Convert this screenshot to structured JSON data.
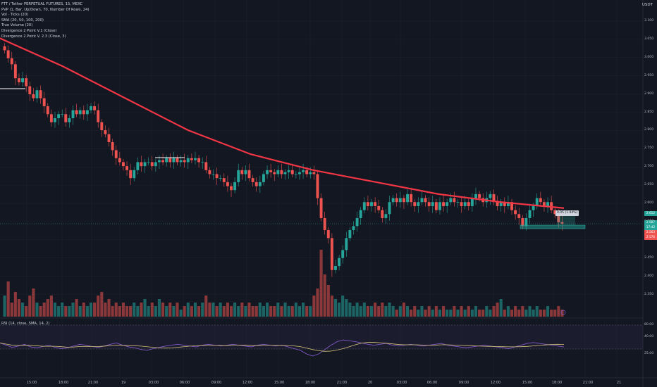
{
  "legend": {
    "symbol": "FTT / Tether PERPETUAL FUTURES, 15, MEXC",
    "indicators": [
      "PVP (1, Bar, Up/Down, 70, Number Of Rows, 24)",
      "Vol · Ticks (20)",
      "SMA (20, 50, 100, 200)",
      "True Volume (20)",
      "Divergence 2 Point V.1 (Close)",
      "Divergence 2 Point V. 2.3 (Close, 3)"
    ]
  },
  "currency": "USDT",
  "rsi_legend": "RSI (14, close, SMA, 14, 2)",
  "price_axis": [
    "3.100",
    "3.050",
    "3.000",
    "2.950",
    "2.900",
    "2.850",
    "2.800",
    "2.750",
    "2.700",
    "2.650",
    "2.600",
    "2.550",
    "2.500",
    "2.450",
    "2.400",
    "2.350"
  ],
  "rsi_axis": [
    "80.00",
    "40.00",
    "25.00"
  ],
  "time_axis": [
    "15:00",
    "18:00",
    "21:00",
    "19",
    "03:00",
    "06:00",
    "09:00",
    "12:00",
    "15:00",
    "18:00",
    "21:00",
    "20",
    "03:00",
    "06:00",
    "09:00",
    "12:00",
    "15:00",
    "18:00",
    "21:00",
    "21"
  ],
  "price_labels": [
    {
      "text": "2.612",
      "color": "#26a69a"
    },
    {
      "text": "2.587",
      "color": "#26a69a"
    },
    {
      "text": "17:42",
      "color": "#26a69a"
    },
    {
      "text": "2.563",
      "color": "#ef5350"
    },
    {
      "text": "2.576",
      "color": "#ef5350"
    }
  ],
  "tooltip_text": "0.05 (1.94%)",
  "colors": {
    "background": "#131722",
    "up": "#26a69a",
    "down": "#ef5350",
    "sma200": "#f23645",
    "rsi": "#7e57c2",
    "rsi_ma": "#d4c17a",
    "grid": "#1e222d"
  },
  "chart_data": {
    "type": "candlestick",
    "title": "FTT / Tether PERPETUAL FUTURES, 15, MEXC",
    "ylim": [
      2.35,
      3.1
    ],
    "close_series": [
      3.02,
      3.0,
      2.985,
      2.95,
      2.94,
      2.95,
      2.93,
      2.91,
      2.9,
      2.92,
      2.9,
      2.88,
      2.86,
      2.84,
      2.85,
      2.86,
      2.86,
      2.84,
      2.85,
      2.87,
      2.86,
      2.87,
      2.86,
      2.87,
      2.88,
      2.87,
      2.84,
      2.82,
      2.81,
      2.79,
      2.77,
      2.75,
      2.74,
      2.73,
      2.72,
      2.7,
      2.72,
      2.74,
      2.73,
      2.74,
      2.74,
      2.73,
      2.74,
      2.745,
      2.74,
      2.75,
      2.74,
      2.75,
      2.74,
      2.745,
      2.74,
      2.75,
      2.745,
      2.75,
      2.74,
      2.74,
      2.72,
      2.71,
      2.71,
      2.7,
      2.7,
      2.69,
      2.68,
      2.67,
      2.69,
      2.72,
      2.71,
      2.72,
      2.7,
      2.69,
      2.68,
      2.69,
      2.71,
      2.72,
      2.715,
      2.71,
      2.72,
      2.71,
      2.715,
      2.72,
      2.71,
      2.71,
      2.715,
      2.72,
      2.71,
      2.715,
      2.71,
      2.65,
      2.6,
      2.57,
      2.55,
      2.47,
      2.48,
      2.5,
      2.52,
      2.55,
      2.57,
      2.58,
      2.6,
      2.62,
      2.64,
      2.63,
      2.64,
      2.63,
      2.62,
      2.6,
      2.61,
      2.64,
      2.65,
      2.64,
      2.65,
      2.64,
      2.66,
      2.64,
      2.63,
      2.64,
      2.65,
      2.64,
      2.63,
      2.64,
      2.62,
      2.64,
      2.63,
      2.64,
      2.65,
      2.64,
      2.64,
      2.63,
      2.64,
      2.63,
      2.65,
      2.66,
      2.65,
      2.64,
      2.65,
      2.66,
      2.64,
      2.63,
      2.64,
      2.63,
      2.64,
      2.62,
      2.61,
      2.6,
      2.58,
      2.6,
      2.62,
      2.63,
      2.65,
      2.64,
      2.63,
      2.64,
      2.62,
      2.61,
      2.59,
      2.586
    ],
    "sma200": [
      3.05,
      2.98,
      2.9,
      2.82,
      2.76,
      2.72,
      2.69,
      2.66,
      2.64,
      2.625
    ],
    "volume_relative": [
      0.3,
      0.5,
      0.2,
      0.35,
      0.25,
      0.2,
      0.15,
      0.3,
      0.4,
      0.2,
      0.15,
      0.2,
      0.25,
      0.3,
      0.2,
      0.15,
      0.2,
      0.15,
      0.15,
      0.2,
      0.25,
      0.15,
      0.2,
      0.15,
      0.2,
      0.2,
      0.3,
      0.35,
      0.2,
      0.25,
      0.15,
      0.2,
      0.15,
      0.2,
      0.15,
      0.15,
      0.2,
      0.15,
      0.2,
      0.25,
      0.15,
      0.2,
      0.15,
      0.25,
      0.2,
      0.15,
      0.2,
      0.15,
      0.2,
      0.1,
      0.15,
      0.2,
      0.15,
      0.2,
      0.15,
      0.2,
      0.3,
      0.2,
      0.2,
      0.15,
      0.2,
      0.15,
      0.2,
      0.15,
      0.2,
      0.15,
      0.2,
      0.15,
      0.2,
      0.15,
      0.15,
      0.2,
      0.15,
      0.2,
      0.15,
      0.15,
      0.2,
      0.15,
      0.2,
      0.15,
      0.15,
      0.2,
      0.15,
      0.2,
      0.15,
      0.15,
      0.3,
      0.4,
      0.95,
      0.6,
      0.45,
      0.3,
      0.25,
      0.2,
      0.3,
      0.25,
      0.2,
      0.15,
      0.2,
      0.15,
      0.2,
      0.15,
      0.15,
      0.2,
      0.15,
      0.2,
      0.15,
      0.2,
      0.15,
      0.1,
      0.15,
      0.2,
      0.15,
      0.1,
      0.15,
      0.1,
      0.15,
      0.1,
      0.15,
      0.1,
      0.15,
      0.1,
      0.15,
      0.1,
      0.1,
      0.15,
      0.1,
      0.15,
      0.1,
      0.15,
      0.1,
      0.15,
      0.1,
      0.1,
      0.15,
      0.1,
      0.15,
      0.2,
      0.25,
      0.1,
      0.15,
      0.1,
      0.15,
      0.1,
      0.15,
      0.1,
      0.15,
      0.1,
      0.15,
      0.1,
      0.1,
      0.15,
      0.1,
      0.1,
      0.15,
      0.1
    ],
    "rsi": [
      55,
      50,
      45,
      48,
      52,
      46,
      44,
      47,
      50,
      45,
      42,
      44,
      48,
      52,
      50,
      47,
      45,
      48,
      52,
      55,
      50,
      46,
      44,
      40,
      38,
      42,
      45,
      48,
      50,
      52,
      50,
      48,
      46,
      50,
      52,
      50,
      48,
      50,
      52,
      50,
      48,
      46,
      50,
      52,
      50,
      48,
      50,
      46,
      42,
      38,
      30,
      25,
      30,
      40,
      50,
      58,
      62,
      60,
      58,
      55,
      52,
      50,
      52,
      54,
      50,
      48,
      50,
      52,
      50,
      48,
      50,
      52,
      54,
      50,
      48,
      46,
      44,
      46,
      48,
      50,
      48,
      46,
      44,
      42,
      46,
      50,
      54,
      56,
      54,
      52,
      50,
      48,
      46
    ]
  }
}
